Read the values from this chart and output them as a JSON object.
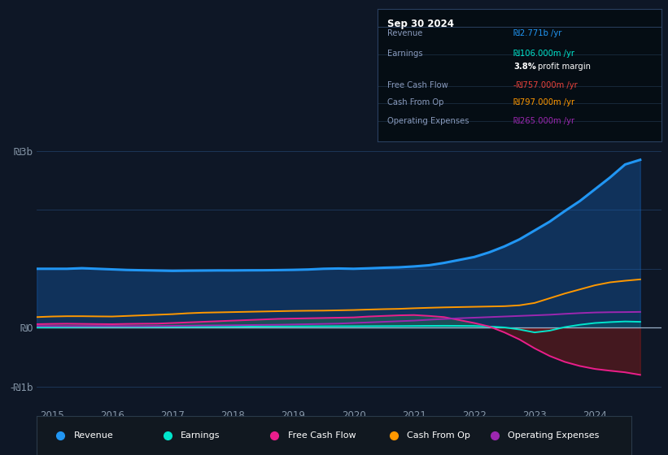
{
  "bg_color": "#0e1726",
  "plot_bg_color": "#0e1726",
  "zero_line_color": "#c0c0c0",
  "legend_items": [
    {
      "label": "Revenue",
      "color": "#2196f3"
    },
    {
      "label": "Earnings",
      "color": "#00e5cc"
    },
    {
      "label": "Free Cash Flow",
      "color": "#e91e8c"
    },
    {
      "label": "Cash From Op",
      "color": "#ff9800"
    },
    {
      "label": "Operating Expenses",
      "color": "#9c27b0"
    }
  ],
  "series": {
    "years": [
      2014.75,
      2015.0,
      2015.25,
      2015.5,
      2015.75,
      2016.0,
      2016.25,
      2016.5,
      2016.75,
      2017.0,
      2017.25,
      2017.5,
      2017.75,
      2018.0,
      2018.25,
      2018.5,
      2018.75,
      2019.0,
      2019.25,
      2019.5,
      2019.75,
      2020.0,
      2020.25,
      2020.5,
      2020.75,
      2021.0,
      2021.25,
      2021.5,
      2021.75,
      2022.0,
      2022.25,
      2022.5,
      2022.75,
      2023.0,
      2023.25,
      2023.5,
      2023.75,
      2024.0,
      2024.25,
      2024.5,
      2024.75
    ],
    "revenue": [
      1000,
      1000,
      1000,
      1010,
      1000,
      990,
      980,
      975,
      970,
      965,
      968,
      970,
      972,
      972,
      974,
      975,
      978,
      982,
      988,
      1000,
      1005,
      1000,
      1008,
      1018,
      1025,
      1040,
      1060,
      1100,
      1150,
      1200,
      1280,
      1380,
      1500,
      1650,
      1800,
      1980,
      2150,
      2350,
      2550,
      2771,
      2850
    ],
    "earnings": [
      5,
      8,
      10,
      12,
      14,
      15,
      14,
      13,
      14,
      15,
      14,
      15,
      16,
      17,
      18,
      20,
      21,
      22,
      23,
      24,
      25,
      25,
      26,
      27,
      28,
      30,
      32,
      33,
      32,
      30,
      20,
      5,
      -30,
      -80,
      -50,
      10,
      50,
      80,
      95,
      106,
      100
    ],
    "free_cash_flow": [
      60,
      65,
      68,
      65,
      62,
      60,
      65,
      68,
      70,
      80,
      90,
      100,
      110,
      120,
      130,
      140,
      150,
      155,
      160,
      165,
      170,
      175,
      190,
      200,
      210,
      215,
      200,
      180,
      130,
      80,
      20,
      -80,
      -200,
      -350,
      -480,
      -580,
      -650,
      -700,
      -730,
      -757,
      -800
    ],
    "cash_from_op": [
      180,
      190,
      195,
      195,
      192,
      190,
      200,
      210,
      220,
      230,
      245,
      255,
      260,
      265,
      270,
      275,
      280,
      285,
      288,
      290,
      295,
      300,
      308,
      315,
      320,
      330,
      338,
      345,
      350,
      355,
      360,
      365,
      380,
      420,
      500,
      580,
      650,
      720,
      770,
      797,
      820
    ],
    "operating_expenses": [
      28,
      28,
      28,
      28,
      28,
      28,
      28,
      28,
      30,
      32,
      35,
      38,
      40,
      42,
      45,
      48,
      50,
      55,
      60,
      65,
      70,
      80,
      90,
      100,
      110,
      120,
      135,
      148,
      160,
      170,
      180,
      190,
      200,
      210,
      220,
      235,
      248,
      258,
      263,
      265,
      268
    ]
  }
}
